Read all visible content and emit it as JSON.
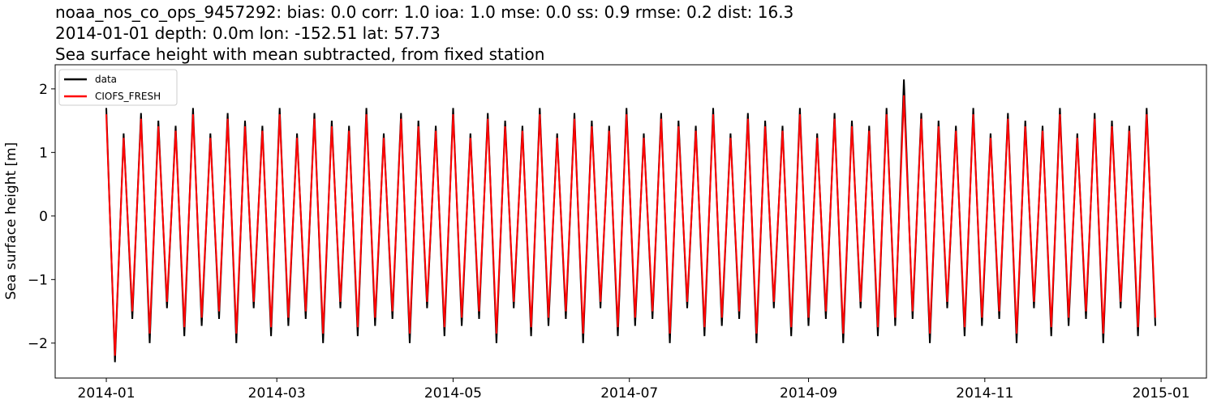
{
  "chart_data": {
    "type": "line",
    "title_lines": [
      "noaa_nos_co_ops_9457292: bias: 0.0  corr: 1.0  ioa: 1.0  mse: 0.0  ss: 0.9  rmse: 0.2  dist: 16.3",
      "2014-01-01 depth: 0.0m lon: -152.51 lat: 57.73",
      "Sea surface height with mean subtracted, from fixed station"
    ],
    "y_label": "Sea surface height [m]",
    "xlim": [
      -17.7,
      380.7
    ],
    "xticks": [
      {
        "value": 0,
        "label": "2014-01"
      },
      {
        "value": 59,
        "label": "2014-03"
      },
      {
        "value": 120,
        "label": "2014-05"
      },
      {
        "value": 181,
        "label": "2014-07"
      },
      {
        "value": 243,
        "label": "2014-09"
      },
      {
        "value": 304,
        "label": "2014-11"
      },
      {
        "value": 365,
        "label": "2015-01"
      }
    ],
    "ylim": [
      -2.55,
      2.38
    ],
    "yticks": [
      {
        "value": -2,
        "label": "−2"
      },
      {
        "value": -1,
        "label": "−1"
      },
      0,
      1,
      2
    ],
    "legend": "upper left",
    "x": [
      0,
      3,
      6,
      9,
      12,
      15,
      18,
      21,
      24,
      27,
      30,
      33,
      36,
      39,
      42,
      45,
      48,
      51,
      54,
      57,
      60,
      63,
      66,
      69,
      72,
      75,
      78,
      81,
      84,
      87,
      90,
      93,
      96,
      99,
      102,
      105,
      108,
      111,
      114,
      117,
      120,
      123,
      126,
      129,
      132,
      135,
      138,
      141,
      144,
      147,
      150,
      153,
      156,
      159,
      162,
      165,
      168,
      171,
      174,
      177,
      180,
      183,
      186,
      189,
      192,
      195,
      198,
      201,
      204,
      207,
      210,
      213,
      216,
      219,
      222,
      225,
      228,
      231,
      234,
      237,
      240,
      243,
      246,
      249,
      252,
      255,
      258,
      261,
      264,
      267,
      270,
      273,
      276,
      279,
      282,
      285,
      288,
      291,
      294,
      297,
      300,
      303,
      306,
      309,
      312,
      315,
      318,
      321,
      324,
      327,
      330,
      333,
      336,
      339,
      342,
      345,
      348,
      351,
      354,
      357,
      360,
      363
    ],
    "series": [
      {
        "name": "data",
        "color": "#000000",
        "values": [
          1.7,
          -2.3,
          1.3,
          -1.62,
          1.62,
          -2.0,
          1.5,
          -1.45,
          1.42,
          -1.89,
          1.7,
          -1.73,
          1.3,
          -1.62,
          1.62,
          -2.0,
          1.5,
          -1.45,
          1.42,
          -1.89,
          1.7,
          -1.73,
          1.3,
          -1.62,
          1.62,
          -2.0,
          1.5,
          -1.45,
          1.42,
          -1.89,
          1.7,
          -1.73,
          1.3,
          -1.62,
          1.62,
          -2.0,
          1.5,
          -1.45,
          1.42,
          -1.89,
          1.7,
          -1.73,
          1.3,
          -1.62,
          1.62,
          -2.0,
          1.5,
          -1.45,
          1.42,
          -1.89,
          1.7,
          -1.73,
          1.3,
          -1.62,
          1.62,
          -2.0,
          1.5,
          -1.45,
          1.42,
          -1.89,
          1.7,
          -1.73,
          1.3,
          -1.62,
          1.62,
          -2.0,
          1.5,
          -1.45,
          1.42,
          -1.89,
          1.7,
          -1.73,
          1.3,
          -1.62,
          1.62,
          -2.0,
          1.5,
          -1.45,
          1.42,
          -1.89,
          1.7,
          -1.73,
          1.3,
          -1.62,
          1.62,
          -2.0,
          1.5,
          -1.45,
          1.42,
          -1.89,
          1.7,
          -1.73,
          2.15,
          -1.62,
          1.62,
          -2.0,
          1.5,
          -1.45,
          1.42,
          -1.89,
          1.7,
          -1.73,
          1.3,
          -1.62,
          1.62,
          -2.0,
          1.5,
          -1.45,
          1.42,
          -1.89,
          1.7,
          -1.73,
          1.3,
          -1.62,
          1.62,
          -2.0,
          1.5,
          -1.45,
          1.42,
          -1.89,
          1.7,
          -1.73
        ]
      },
      {
        "name": "CIOFS_FRESH",
        "color": "#ff0000",
        "values": [
          1.6,
          -2.2,
          1.23,
          -1.5,
          1.53,
          -1.85,
          1.41,
          -1.35,
          1.34,
          -1.75,
          1.6,
          -1.6,
          1.23,
          -1.5,
          1.53,
          -1.85,
          1.41,
          -1.35,
          1.34,
          -1.75,
          1.6,
          -1.6,
          1.23,
          -1.5,
          1.53,
          -1.85,
          1.41,
          -1.35,
          1.34,
          -1.75,
          1.6,
          -1.6,
          1.23,
          -1.5,
          1.53,
          -1.85,
          1.41,
          -1.35,
          1.34,
          -1.75,
          1.6,
          -1.6,
          1.23,
          -1.5,
          1.53,
          -1.85,
          1.41,
          -1.35,
          1.34,
          -1.75,
          1.6,
          -1.6,
          1.23,
          -1.5,
          1.53,
          -1.85,
          1.41,
          -1.35,
          1.34,
          -1.75,
          1.6,
          -1.6,
          1.23,
          -1.5,
          1.53,
          -1.85,
          1.41,
          -1.35,
          1.34,
          -1.75,
          1.6,
          -1.6,
          1.23,
          -1.5,
          1.53,
          -1.85,
          1.41,
          -1.35,
          1.34,
          -1.75,
          1.6,
          -1.6,
          1.23,
          -1.5,
          1.53,
          -1.85,
          1.41,
          -1.35,
          1.34,
          -1.75,
          1.6,
          -1.6,
          1.9,
          -1.5,
          1.53,
          -1.85,
          1.41,
          -1.35,
          1.34,
          -1.75,
          1.6,
          -1.6,
          1.23,
          -1.5,
          1.53,
          -1.85,
          1.41,
          -1.35,
          1.34,
          -1.75,
          1.6,
          -1.6,
          1.23,
          -1.5,
          1.53,
          -1.85,
          1.41,
          -1.35,
          1.34,
          -1.75,
          1.6,
          -1.6
        ]
      }
    ]
  }
}
